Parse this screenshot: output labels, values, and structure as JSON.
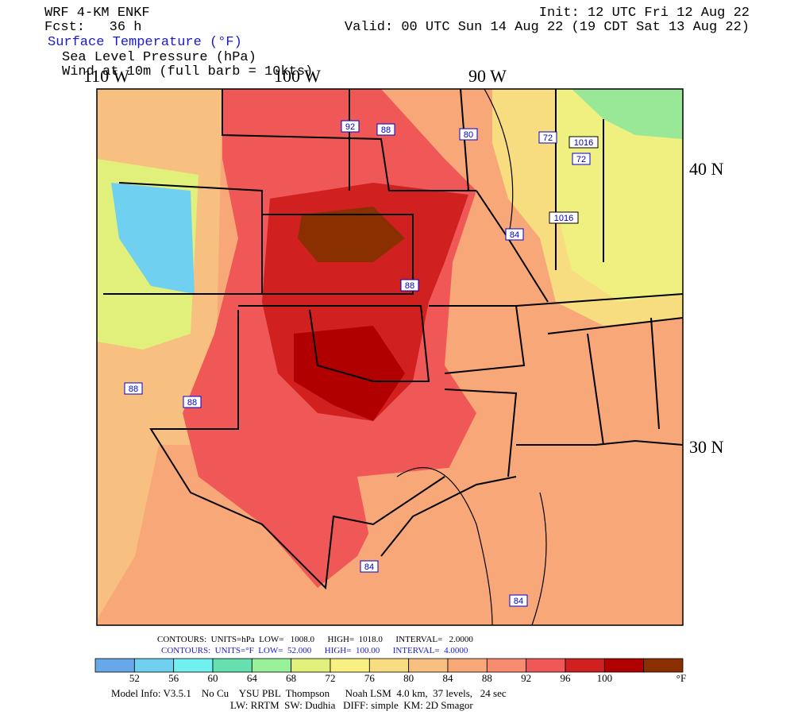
{
  "header": {
    "model": "WRF 4-KM ENKF",
    "forecast": "Fcst:   36 h",
    "init": "Init: 12 UTC Fri 12 Aug 22",
    "valid": "Valid: 00 UTC Sun 14 Aug 22 (19 CDT Sat 13 Aug 22)",
    "fields": [
      "Surface Temperature (°F)",
      "Sea Level Pressure (hPa)",
      "Wind at 10m (full barb = 10kts)"
    ]
  },
  "map": {
    "lon_labels": [
      "110 W",
      "100 W",
      "90 W"
    ],
    "lat_labels": [
      "40 N",
      "30 N"
    ],
    "contour_labels": [
      "92",
      "88",
      "80",
      "72",
      "1016",
      "72",
      "1016",
      "84",
      "88",
      "88",
      "88",
      "84",
      "84"
    ]
  },
  "contours": {
    "pressure": "CONTOURS:  UNITS=hPa  LOW=   1008.0      HIGH=  1018.0      INTERVAL=   2.0000",
    "temperature": "CONTOURS:  UNITS=°F  LOW=  52.000      HIGH=  100.00      INTERVAL=  4.0000"
  },
  "colorbar": {
    "labels": [
      "52",
      "56",
      "60",
      "64",
      "68",
      "72",
      "76",
      "80",
      "84",
      "88",
      "92",
      "96",
      "100"
    ],
    "unit": "°F",
    "colors": [
      "#66a8e8",
      "#70d0f0",
      "#70f0ee",
      "#66e0b0",
      "#98f098",
      "#e0f07a",
      "#f8f080",
      "#f8dc80",
      "#f8c080",
      "#f8a878",
      "#f88c70",
      "#f05858",
      "#d02020",
      "#b00000",
      "#8a3000"
    ]
  },
  "footer": [
    "Model Info: V3.5.1    No Cu    YSU PBL  Thompson      Noah LSM  4.0 km,  37 levels,   24 sec",
    "LW: RRTM  SW: Dudhia   DIFF: simple  KM: 2D Smagor"
  ]
}
